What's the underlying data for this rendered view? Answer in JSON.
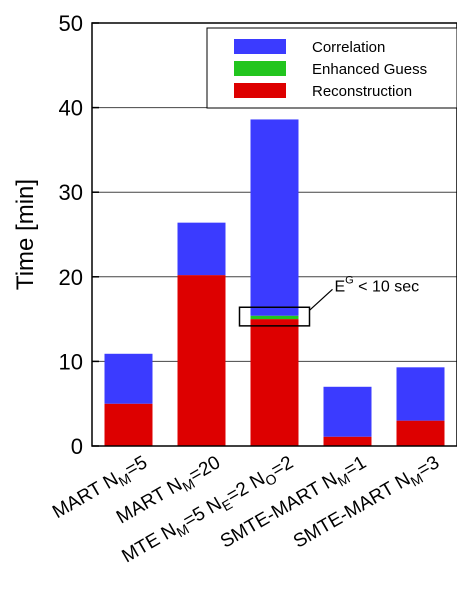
{
  "chart_data": {
    "type": "bar",
    "stacked": true,
    "ylabel": "Time [min]",
    "ylim": [
      0,
      50
    ],
    "yticks": [
      0,
      10,
      20,
      30,
      40,
      50
    ],
    "grid": true,
    "legend_position": "top-right",
    "categories": [
      {
        "main": "MART N",
        "parts": [
          {
            "text": "MART N"
          },
          {
            "text": "M",
            "sub": true
          },
          {
            "text": "=5"
          }
        ]
      },
      {
        "main": "MART N",
        "parts": [
          {
            "text": "MART N"
          },
          {
            "text": "M",
            "sub": true
          },
          {
            "text": "=20"
          }
        ]
      },
      {
        "main": "MTE N",
        "parts": [
          {
            "text": "MTE N"
          },
          {
            "text": "M",
            "sub": true
          },
          {
            "text": "=5 N"
          },
          {
            "text": "E",
            "sub": true
          },
          {
            "text": "=2 N"
          },
          {
            "text": "O",
            "sub": true
          },
          {
            "text": "=2"
          }
        ]
      },
      {
        "main": "SMTE-MART N",
        "parts": [
          {
            "text": "SMTE-MART N"
          },
          {
            "text": "M",
            "sub": true
          },
          {
            "text": "=1"
          }
        ]
      },
      {
        "main": "SMTE-MART N",
        "parts": [
          {
            "text": "SMTE-MART N"
          },
          {
            "text": "M",
            "sub": true
          },
          {
            "text": "=3"
          }
        ]
      }
    ],
    "series": [
      {
        "name": "Reconstruction",
        "color": "#dd0000",
        "values": [
          5.0,
          20.2,
          15.0,
          1.1,
          3.0
        ]
      },
      {
        "name": "Enhanced Guess",
        "color": "#22c51e",
        "values": [
          0,
          0,
          0.4,
          0,
          0
        ]
      },
      {
        "name": "Correlation",
        "color": "#3b3bff",
        "values": [
          5.9,
          6.2,
          23.2,
          5.9,
          6.3
        ]
      }
    ],
    "legend_order": [
      "Correlation",
      "Enhanced Guess",
      "Reconstruction"
    ],
    "annotation": {
      "base": "E",
      "sup": "G",
      "rest": " < 10 sec",
      "target_category_index": 2,
      "y_range": [
        14.2,
        16.4
      ]
    }
  }
}
